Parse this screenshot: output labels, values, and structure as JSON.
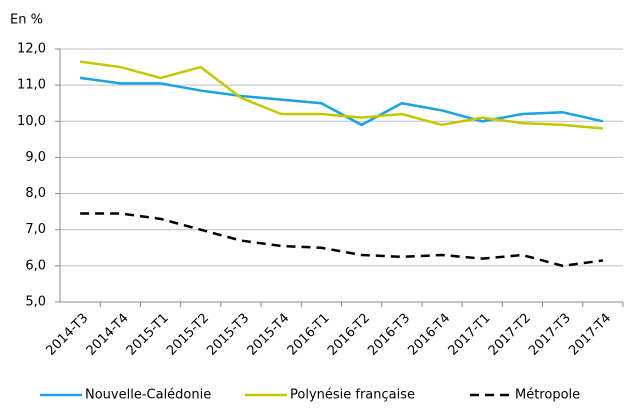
{
  "chart_data": {
    "type": "line",
    "ylabel": "En %",
    "categories": [
      "2014-T3",
      "2014-T4",
      "2015-T1",
      "2015-T2",
      "2015-T3",
      "2015-T4",
      "2016-T1",
      "2016-T2",
      "2016-T3",
      "2016-T4",
      "2017-T1",
      "2017-T2",
      "2017-T3",
      "2017-T4"
    ],
    "series": [
      {
        "name": "Nouvelle-Calédonie",
        "color": "#1ba3de",
        "style": "solid",
        "values": [
          11.2,
          11.05,
          11.05,
          10.85,
          10.7,
          10.6,
          10.5,
          9.9,
          10.5,
          10.3,
          10.0,
          10.2,
          10.25,
          10.0
        ]
      },
      {
        "name": "Polynésie française",
        "color": "#c2c800",
        "style": "solid",
        "values": [
          11.65,
          11.5,
          11.2,
          11.5,
          10.65,
          10.2,
          10.2,
          10.1,
          10.2,
          9.9,
          10.1,
          9.95,
          9.9,
          9.8
        ]
      },
      {
        "name": "Métropole",
        "color": "#000000",
        "style": "dashed",
        "values": [
          7.45,
          7.45,
          7.3,
          7.0,
          6.7,
          6.55,
          6.5,
          6.3,
          6.25,
          6.3,
          6.2,
          6.3,
          6.0,
          6.15
        ]
      }
    ],
    "ylim": [
      5,
      12
    ],
    "yticks": [
      {
        "value": 5,
        "label": "5,0"
      },
      {
        "value": 6,
        "label": "6,0"
      },
      {
        "value": 7,
        "label": "7,0"
      },
      {
        "value": 8,
        "label": "8,0"
      },
      {
        "value": 9,
        "label": "9,0"
      },
      {
        "value": 10,
        "label": "10,0"
      },
      {
        "value": 11,
        "label": "11,0"
      },
      {
        "value": 12,
        "label": "12,0"
      }
    ],
    "grid": true,
    "legend": "bottom"
  }
}
